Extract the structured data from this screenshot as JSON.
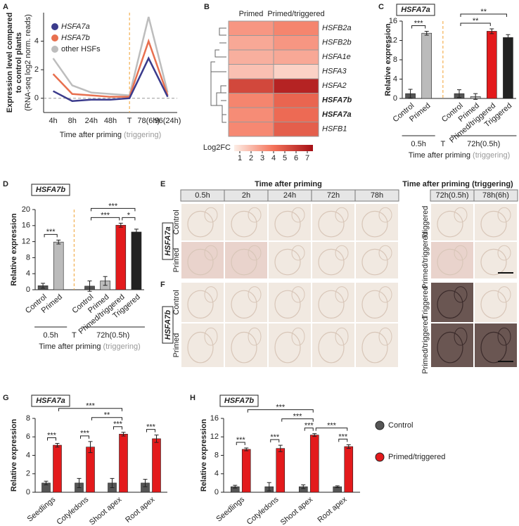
{
  "chart_data": [
    {
      "panel": "A",
      "type": "line",
      "ylabel": [
        "Expression level compared",
        "to control plants",
        "(RNA-seq log2 norm. reads)"
      ],
      "categories": [
        "4h",
        "8h",
        "24h",
        "48h",
        "T",
        "78(6h)",
        "96(24h)"
      ],
      "series": [
        {
          "name": "HSFA7a",
          "color": "#3b3b8c",
          "values": [
            0.5,
            -0.2,
            -0.1,
            -0.1,
            0,
            2.8,
            0.1
          ]
        },
        {
          "name": "HSFA7b",
          "color": "#e8704f",
          "values": [
            1.7,
            0.3,
            0.2,
            0.1,
            0.1,
            4.0,
            0.2
          ]
        },
        {
          "name": "other HSFs",
          "color": "#bdbdbd",
          "values": [
            2.8,
            0.9,
            0.4,
            0.3,
            0.2,
            5.7,
            0.4
          ]
        }
      ],
      "ylim": [
        -1,
        6
      ],
      "yticks": [
        0,
        2,
        4
      ],
      "xlabel": "Time after priming",
      "xlabel_note": "(triggering)"
    },
    {
      "panel": "B",
      "type": "heatmap",
      "columns": [
        "Primed",
        "Primed/triggered"
      ],
      "rows": [
        "HSFB2a",
        "HSFB2b",
        "HSFA1e",
        "HSFA3",
        "HSFA2",
        "HSFA7b",
        "HSFA7a",
        "HSFB1"
      ],
      "values": [
        [
          3.0,
          3.5
        ],
        [
          2.5,
          3.0
        ],
        [
          2.3,
          2.5
        ],
        [
          1.8,
          1.3
        ],
        [
          5.5,
          6.8
        ],
        [
          3.5,
          4.5
        ],
        [
          3.3,
          4.3
        ],
        [
          3.4,
          4.7
        ]
      ],
      "bold_rows": [
        5,
        6
      ],
      "colorbar_label": "Log2FC",
      "clim": [
        0.5,
        7.5
      ],
      "cticks": [
        1,
        2,
        3,
        4,
        5,
        6,
        7
      ],
      "colors": [
        "#fdeee6",
        "#f4735a",
        "#a50f15"
      ]
    },
    {
      "panel": "C",
      "type": "bar",
      "gene": "HSFA7a",
      "ylabel": "Relative expression",
      "categories": [
        "Control",
        "Primed",
        "Control",
        "Primed",
        "Primed/triggered",
        "Triggered"
      ],
      "values": [
        1.0,
        13.5,
        1.0,
        0.4,
        13.9,
        12.6
      ],
      "errors": [
        0.9,
        0.4,
        0.8,
        0.6,
        0.5,
        0.6
      ],
      "colors": [
        "#555555",
        "#bbbbbb",
        "#555555",
        "#bbbbbb",
        "#e31a1c",
        "#222222"
      ],
      "ylim": [
        0,
        16
      ],
      "yticks": [
        0,
        4,
        8,
        12,
        16
      ],
      "groups": [
        "0.5h",
        "T",
        "72h(0.5h)"
      ],
      "xlabel": "Time after priming",
      "xlabel_note": "(triggering)",
      "significance": [
        {
          "pair": [
            0,
            1
          ],
          "label": "***"
        },
        {
          "pair": [
            2,
            4
          ],
          "label": "**"
        },
        {
          "pair": [
            2,
            5
          ],
          "label": "**"
        }
      ]
    },
    {
      "panel": "D",
      "type": "bar",
      "gene": "HSFA7b",
      "ylabel": "Relative expression",
      "categories": [
        "Control",
        "Primed",
        "Control",
        "Primed",
        "Primed/triggered",
        "Triggered"
      ],
      "values": [
        1.0,
        11.9,
        0.9,
        2.2,
        16.1,
        14.4
      ],
      "errors": [
        0.6,
        0.5,
        1.3,
        1.1,
        0.5,
        0.7
      ],
      "colors": [
        "#555555",
        "#bbbbbb",
        "#555555",
        "#bbbbbb",
        "#e31a1c",
        "#222222"
      ],
      "ylim": [
        0,
        20
      ],
      "yticks": [
        0,
        4,
        8,
        12,
        16,
        20
      ],
      "groups": [
        "0.5h",
        "T",
        "72h(0.5h)"
      ],
      "xlabel": "Time after priming",
      "xlabel_note": "(triggering)",
      "significance": [
        {
          "pair": [
            0,
            1
          ],
          "label": "***"
        },
        {
          "pair": [
            2,
            4
          ],
          "label": "***"
        },
        {
          "pair": [
            4,
            5
          ],
          "label": "*"
        },
        {
          "pair": [
            2,
            5
          ],
          "label": "***"
        }
      ]
    },
    {
      "panel": "G",
      "type": "bar",
      "gene": "HSFA7a",
      "ylabel": "Relative expression",
      "categories": [
        "Seedlings",
        "Cotyledons",
        "Shoot apex",
        "Root apex"
      ],
      "series": [
        {
          "color": "#555555",
          "values": [
            1.0,
            1.0,
            1.0,
            1.0
          ],
          "errors": [
            0.2,
            0.5,
            0.5,
            0.4
          ]
        },
        {
          "color": "#e31a1c",
          "values": [
            5.1,
            4.9,
            6.3,
            5.8
          ],
          "errors": [
            0.2,
            0.6,
            0.2,
            0.4
          ]
        }
      ],
      "ylim": [
        0,
        8
      ],
      "yticks": [
        0,
        2,
        4,
        6,
        8
      ],
      "significance": [
        {
          "pair": [
            [
              0,
              0
            ],
            [
              0,
              1
            ]
          ],
          "label": "***"
        },
        {
          "pair": [
            [
              1,
              0
            ],
            [
              1,
              1
            ]
          ],
          "label": "***"
        },
        {
          "pair": [
            [
              2,
              0
            ],
            [
              2,
              1
            ]
          ],
          "label": "***"
        },
        {
          "pair": [
            [
              3,
              0
            ],
            [
              3,
              1
            ]
          ],
          "label": "***"
        },
        {
          "pair": [
            [
              1,
              1
            ],
            [
              2,
              1
            ]
          ],
          "label": "**"
        },
        {
          "pair": [
            [
              0,
              1
            ],
            [
              2,
              1
            ]
          ],
          "label": "***"
        }
      ]
    },
    {
      "panel": "H",
      "type": "bar",
      "gene": "HSFA7b",
      "ylabel": "Relative expression",
      "categories": [
        "Seedlings",
        "Cotyledons",
        "Shoot apex",
        "Root apex"
      ],
      "series": [
        {
          "name": "Control",
          "color": "#555555",
          "values": [
            1.2,
            1.2,
            1.2,
            1.2
          ],
          "errors": [
            0.3,
            0.9,
            0.4,
            0.2
          ]
        },
        {
          "name": "Primed/triggered",
          "color": "#e31a1c",
          "values": [
            9.3,
            9.5,
            12.4,
            9.9
          ],
          "errors": [
            0.3,
            0.7,
            0.3,
            0.4
          ]
        }
      ],
      "ylim": [
        0,
        16
      ],
      "yticks": [
        0,
        4,
        8,
        12,
        16
      ],
      "significance": [
        {
          "pair": [
            [
              0,
              0
            ],
            [
              0,
              1
            ]
          ],
          "label": "***"
        },
        {
          "pair": [
            [
              1,
              0
            ],
            [
              1,
              1
            ]
          ],
          "label": "***"
        },
        {
          "pair": [
            [
              2,
              0
            ],
            [
              2,
              1
            ]
          ],
          "label": "***"
        },
        {
          "pair": [
            [
              3,
              0
            ],
            [
              3,
              1
            ]
          ],
          "label": "***"
        },
        {
          "pair": [
            [
              1,
              1
            ],
            [
              2,
              1
            ]
          ],
          "label": "***"
        },
        {
          "pair": [
            [
              2,
              1
            ],
            [
              3,
              1
            ]
          ],
          "label": "***"
        },
        {
          "pair": [
            [
              0,
              1
            ],
            [
              2,
              1
            ]
          ],
          "label": "***"
        }
      ]
    }
  ],
  "images": {
    "E": {
      "panel": "E",
      "gene": "HSFA7a",
      "title": "Time after priming",
      "times": [
        "0.5h",
        "2h",
        "24h",
        "72h",
        "78h"
      ],
      "trigger_title": "Time after priming (triggering)",
      "trigger_times": [
        "72h(0.5h)",
        "78h(6h)"
      ],
      "rows": [
        "Control",
        "Primed"
      ],
      "trigger_rows": [
        "Triggered",
        "Primed/triggered"
      ]
    },
    "F": {
      "panel": "F",
      "gene": "HSFA7b",
      "rows": [
        "Control",
        "Primed"
      ],
      "trigger_rows": [
        "Triggered",
        "Primed/triggered"
      ]
    }
  }
}
